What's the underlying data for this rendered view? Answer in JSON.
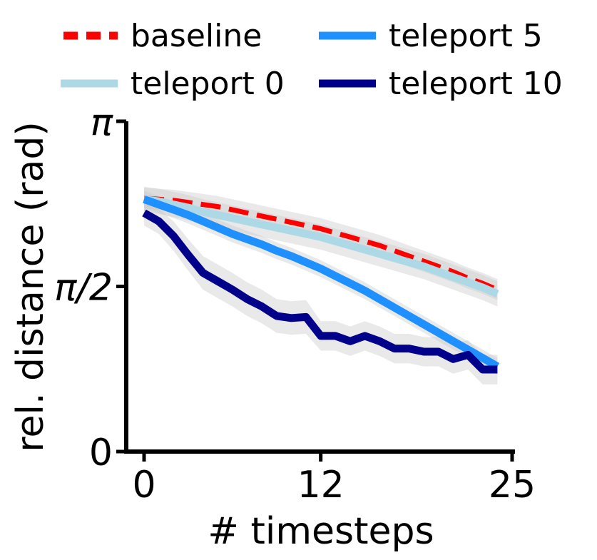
{
  "chart_data": {
    "type": "line",
    "xlabel": "# timesteps",
    "ylabel": "rel. distance (rad)",
    "xlim": [
      -1,
      25
    ],
    "ylim": [
      0,
      3.14159
    ],
    "xticks": [
      0,
      12,
      25
    ],
    "xtick_labels": [
      "0",
      "12",
      "25"
    ],
    "yticks": [
      0,
      1.5708,
      3.14159
    ],
    "ytick_labels": [
      "0",
      "π/2",
      "π"
    ],
    "grid": false,
    "legend_position": "top",
    "x": [
      0,
      1,
      2,
      3,
      4,
      5,
      6,
      7,
      8,
      9,
      10,
      11,
      12,
      13,
      14,
      15,
      16,
      17,
      18,
      19,
      20,
      21,
      22,
      23,
      24
    ],
    "series": [
      {
        "name": "baseline",
        "color": "#ff0000",
        "dash": true,
        "values": [
          2.41,
          2.4,
          2.39,
          2.37,
          2.35,
          2.33,
          2.3,
          2.27,
          2.24,
          2.21,
          2.18,
          2.15,
          2.12,
          2.08,
          2.04,
          2.0,
          1.96,
          1.91,
          1.86,
          1.81,
          1.76,
          1.71,
          1.65,
          1.6,
          1.54
        ],
        "band": [
          0.1,
          0.1,
          0.1,
          0.1,
          0.1,
          0.1,
          0.1,
          0.1,
          0.1,
          0.1,
          0.1,
          0.1,
          0.1,
          0.1,
          0.1,
          0.1,
          0.1,
          0.1,
          0.1,
          0.1,
          0.1,
          0.1,
          0.1,
          0.1,
          0.1
        ]
      },
      {
        "name": "teleport 0",
        "color": "#add8e6",
        "dash": false,
        "values": [
          2.4,
          2.38,
          2.35,
          2.32,
          2.28,
          2.25,
          2.22,
          2.19,
          2.16,
          2.13,
          2.1,
          2.07,
          2.04,
          2.0,
          1.96,
          1.92,
          1.88,
          1.84,
          1.8,
          1.76,
          1.71,
          1.66,
          1.61,
          1.56,
          1.5
        ],
        "band": [
          0.12,
          0.12,
          0.12,
          0.12,
          0.12,
          0.12,
          0.12,
          0.12,
          0.12,
          0.12,
          0.12,
          0.12,
          0.12,
          0.12,
          0.12,
          0.12,
          0.12,
          0.12,
          0.12,
          0.12,
          0.12,
          0.12,
          0.12,
          0.12,
          0.12
        ]
      },
      {
        "name": "teleport 5",
        "color": "#1e90ff",
        "dash": false,
        "values": [
          2.4,
          2.35,
          2.3,
          2.25,
          2.19,
          2.13,
          2.07,
          2.02,
          1.97,
          1.91,
          1.86,
          1.8,
          1.74,
          1.67,
          1.6,
          1.53,
          1.45,
          1.37,
          1.29,
          1.21,
          1.13,
          1.05,
          0.97,
          0.89,
          0.81
        ],
        "band": [
          0.08,
          0.08,
          0.08,
          0.08,
          0.08,
          0.08,
          0.08,
          0.08,
          0.08,
          0.08,
          0.08,
          0.08,
          0.08,
          0.08,
          0.08,
          0.08,
          0.08,
          0.08,
          0.08,
          0.08,
          0.08,
          0.08,
          0.08,
          0.08,
          0.08
        ]
      },
      {
        "name": "teleport 10",
        "color": "#00008b",
        "dash": false,
        "values": [
          2.27,
          2.19,
          2.05,
          1.87,
          1.7,
          1.62,
          1.54,
          1.45,
          1.38,
          1.29,
          1.27,
          1.28,
          1.1,
          1.1,
          1.05,
          1.1,
          1.05,
          0.98,
          0.98,
          0.95,
          0.95,
          0.88,
          0.92,
          0.78,
          0.78
        ],
        "band": [
          0.12,
          0.12,
          0.14,
          0.15,
          0.16,
          0.16,
          0.16,
          0.16,
          0.16,
          0.16,
          0.16,
          0.16,
          0.14,
          0.14,
          0.14,
          0.14,
          0.14,
          0.14,
          0.14,
          0.14,
          0.14,
          0.14,
          0.14,
          0.14,
          0.14
        ]
      }
    ]
  }
}
